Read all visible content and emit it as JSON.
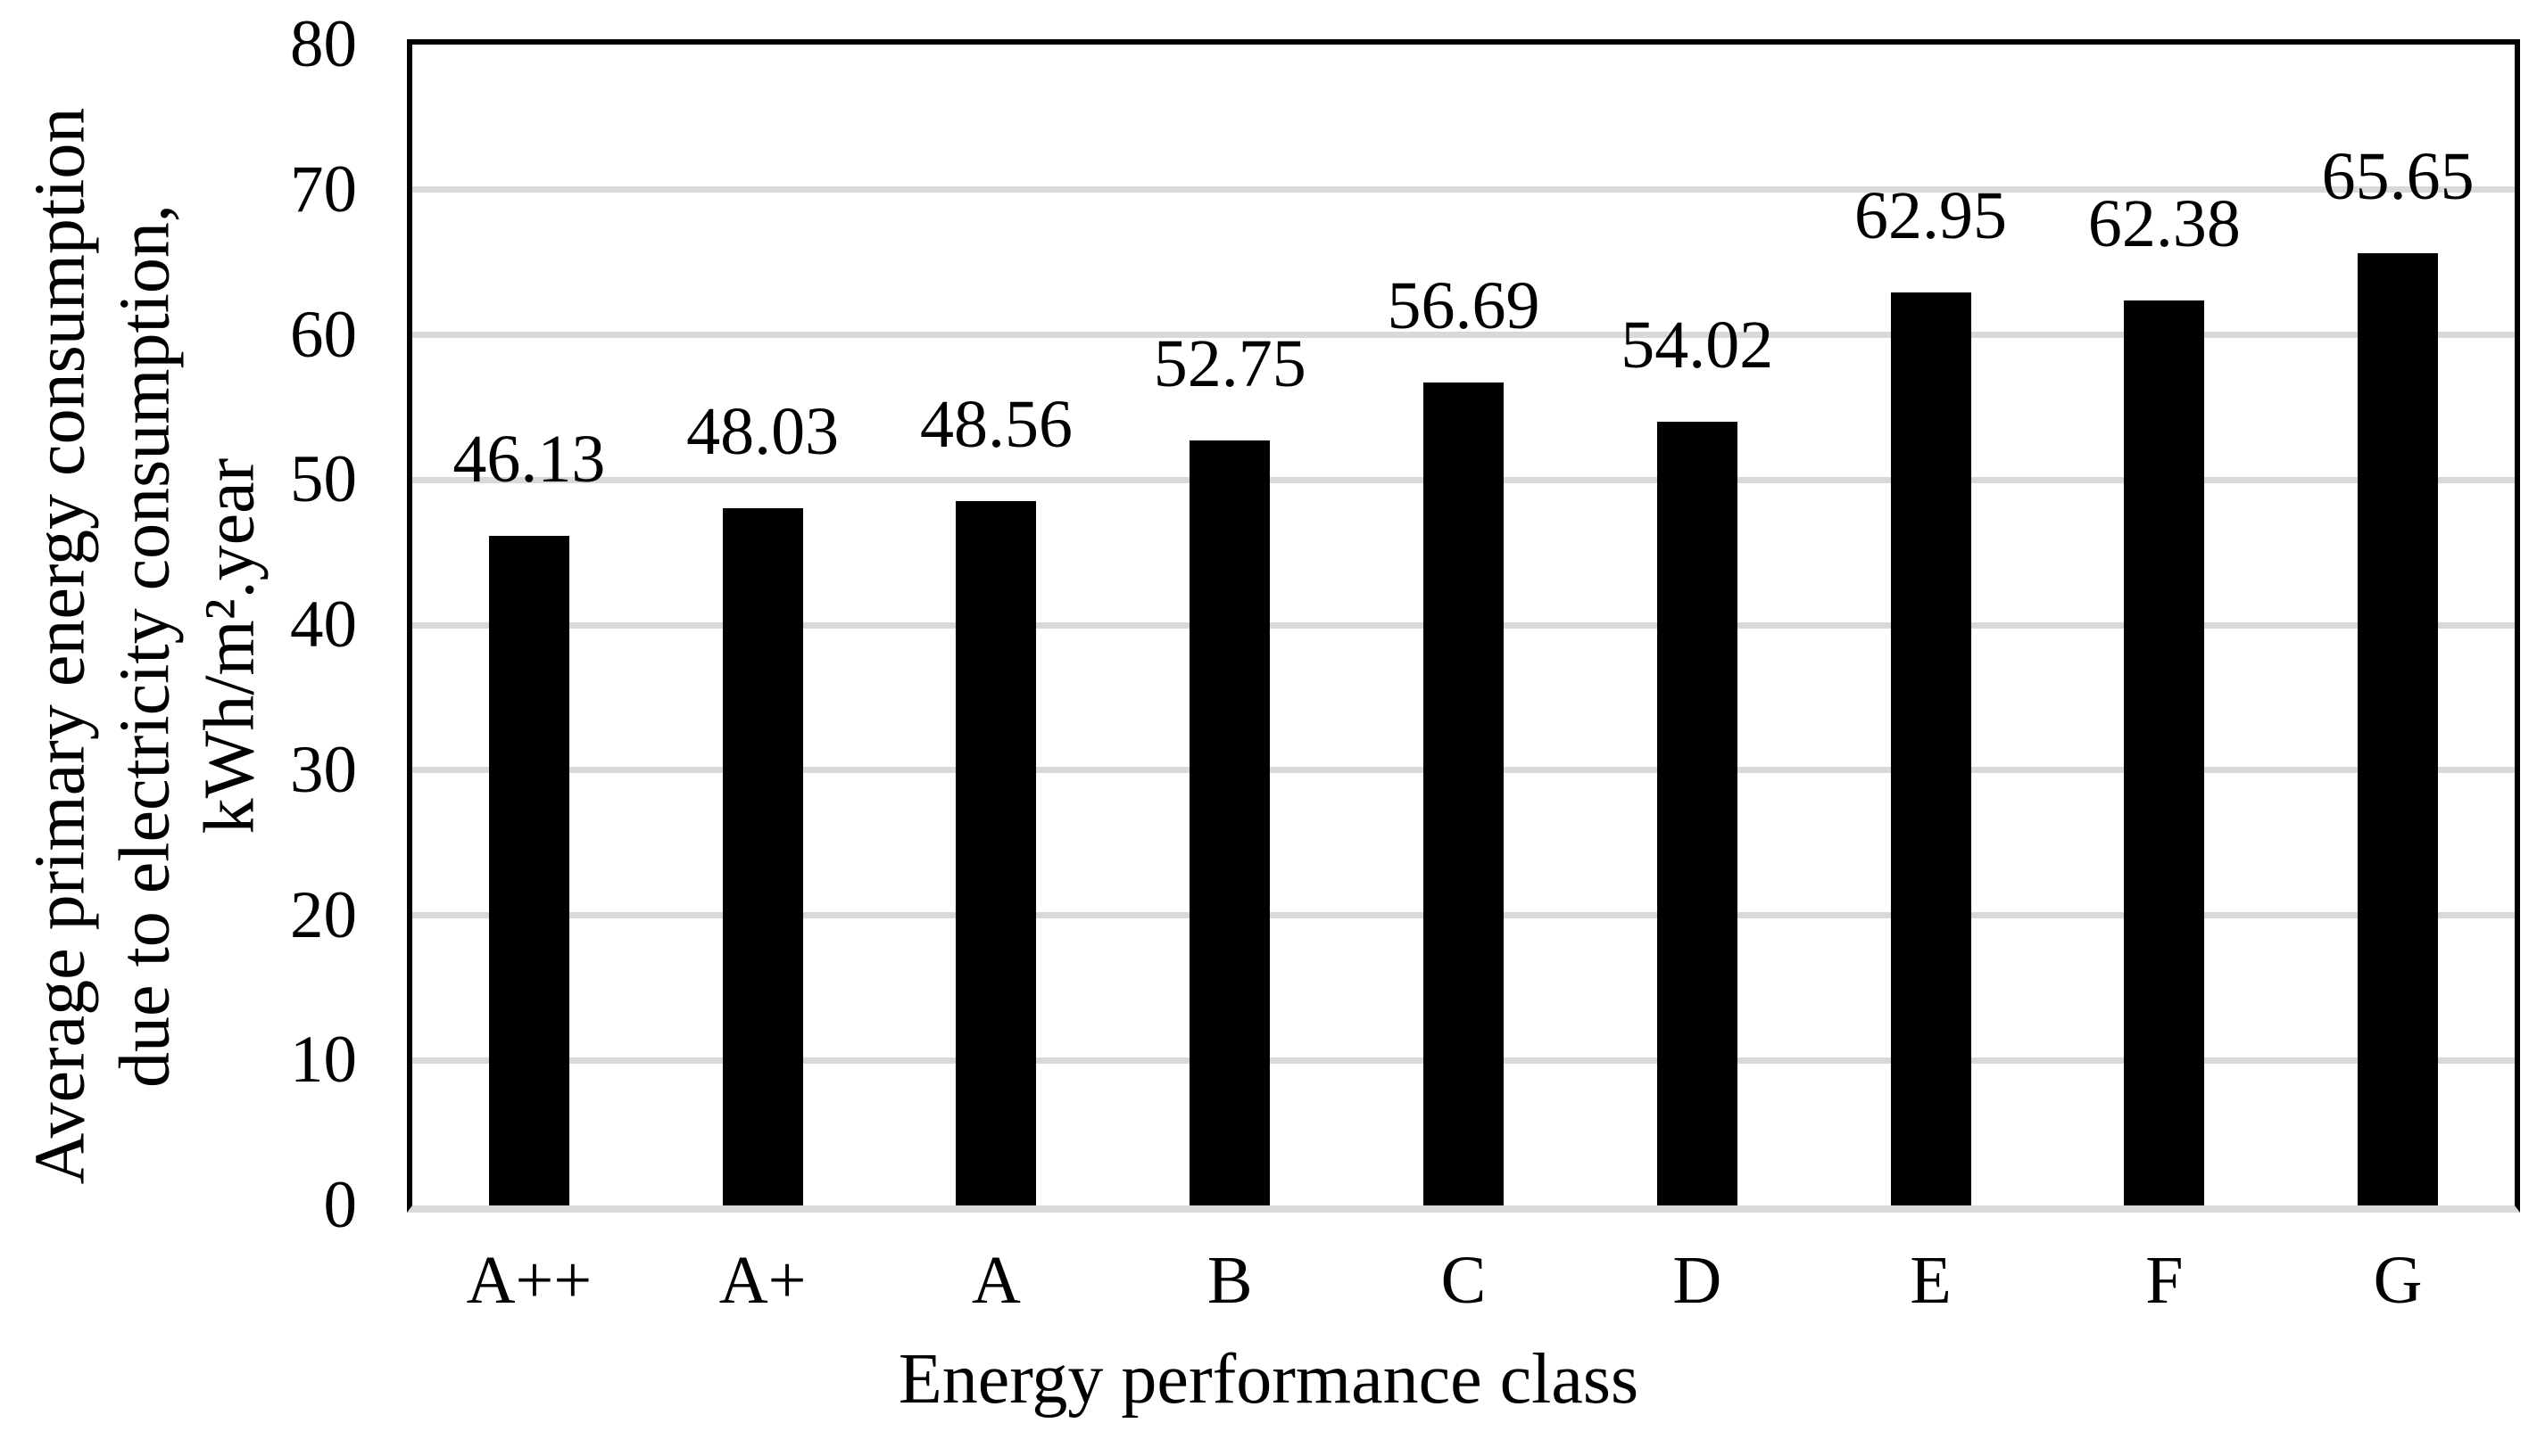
{
  "chart_data": {
    "type": "bar",
    "categories": [
      "A++",
      "A+",
      "A",
      "B",
      "C",
      "D",
      "E",
      "F",
      "G"
    ],
    "values": [
      46.13,
      48.03,
      48.56,
      52.75,
      56.69,
      54.02,
      62.95,
      62.38,
      65.65
    ],
    "bar_labels": [
      "46.13",
      "48.03",
      "48.56",
      "52.75",
      "56.69",
      "54.02",
      "62.95",
      "62.38",
      "65.65"
    ],
    "xlabel": "Energy performance class",
    "ylabel_lines": [
      "Average primary energy consumption",
      "due to electricity consumption,",
      "kWh/m².year"
    ],
    "yticks": [
      0,
      10,
      20,
      30,
      40,
      50,
      60,
      70,
      80
    ],
    "ylim": [
      0,
      80
    ],
    "grid": "horizontal-gridlines-on",
    "legend": "none",
    "colors": {
      "bar": "#000000",
      "gridline": "#d9d9d9",
      "plot_border": "#000000",
      "x_axis_line": "#d9d9d9",
      "text": "#000000",
      "background": "#ffffff"
    }
  }
}
